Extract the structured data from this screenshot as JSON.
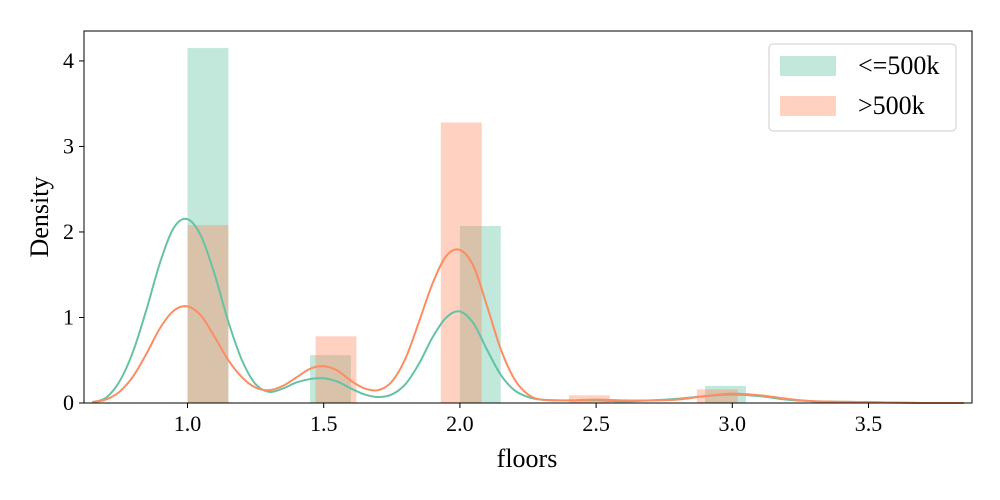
{
  "chart_data": {
    "type": "bar",
    "xlabel": "floors",
    "ylabel": "Density",
    "xlim": [
      0.62,
      3.88
    ],
    "ylim": [
      0,
      4.35
    ],
    "x_ticks": [
      1.0,
      1.5,
      2.0,
      2.5,
      3.0,
      3.5
    ],
    "x_tick_labels": [
      "1.0",
      "1.5",
      "2.0",
      "2.5",
      "3.0",
      "3.5"
    ],
    "y_ticks": [
      0,
      1,
      2,
      3,
      4
    ],
    "y_tick_labels": [
      "0",
      "1",
      "2",
      "3",
      "4"
    ],
    "grid": false,
    "legend_position": "top-right",
    "series": [
      {
        "name": "<=500k",
        "color": "#66c2a5",
        "bar_opacity": 0.4,
        "bins": [
          {
            "x0": 1.0,
            "x1": 1.15,
            "density": 4.15
          },
          {
            "x0": 1.45,
            "x1": 1.6,
            "density": 0.56
          },
          {
            "x0": 2.0,
            "x1": 2.15,
            "density": 2.07
          },
          {
            "x0": 2.9,
            "x1": 3.05,
            "density": 0.2
          }
        ],
        "kde": {
          "x": [
            0.65,
            0.7,
            0.75,
            0.8,
            0.85,
            0.9,
            0.95,
            1.0,
            1.05,
            1.1,
            1.15,
            1.2,
            1.25,
            1.3,
            1.35,
            1.4,
            1.45,
            1.5,
            1.55,
            1.6,
            1.65,
            1.7,
            1.75,
            1.8,
            1.85,
            1.9,
            1.95,
            2.0,
            2.05,
            2.1,
            2.15,
            2.2,
            2.25,
            2.3,
            2.4,
            2.5,
            2.6,
            2.7,
            2.8,
            2.9,
            3.0,
            3.1,
            3.2,
            3.3,
            3.5,
            3.7,
            3.85
          ],
          "y": [
            0.01,
            0.06,
            0.25,
            0.6,
            1.1,
            1.65,
            2.05,
            2.15,
            1.95,
            1.5,
            0.95,
            0.5,
            0.22,
            0.13,
            0.17,
            0.24,
            0.28,
            0.29,
            0.25,
            0.17,
            0.1,
            0.07,
            0.1,
            0.22,
            0.46,
            0.77,
            1.0,
            1.07,
            0.93,
            0.62,
            0.33,
            0.15,
            0.07,
            0.04,
            0.03,
            0.03,
            0.02,
            0.03,
            0.05,
            0.08,
            0.1,
            0.08,
            0.04,
            0.02,
            0.01,
            0.0,
            0.0
          ]
        }
      },
      {
        "name": ">500k",
        "color": "#fc8d62",
        "bar_opacity": 0.4,
        "bins": [
          {
            "x0": 1.0,
            "x1": 1.15,
            "density": 2.08
          },
          {
            "x0": 1.47,
            "x1": 1.62,
            "density": 0.78
          },
          {
            "x0": 1.93,
            "x1": 2.08,
            "density": 3.28
          },
          {
            "x0": 2.4,
            "x1": 2.55,
            "density": 0.09
          },
          {
            "x0": 2.87,
            "x1": 3.02,
            "density": 0.16
          }
        ],
        "kde": {
          "x": [
            0.65,
            0.7,
            0.75,
            0.8,
            0.85,
            0.9,
            0.95,
            1.0,
            1.05,
            1.1,
            1.15,
            1.2,
            1.25,
            1.3,
            1.35,
            1.4,
            1.45,
            1.5,
            1.55,
            1.6,
            1.65,
            1.7,
            1.75,
            1.8,
            1.85,
            1.9,
            1.95,
            2.0,
            2.05,
            2.1,
            2.15,
            2.2,
            2.25,
            2.3,
            2.4,
            2.5,
            2.6,
            2.7,
            2.8,
            2.9,
            3.0,
            3.1,
            3.2,
            3.3,
            3.5,
            3.7,
            3.85
          ],
          "y": [
            0.01,
            0.04,
            0.13,
            0.31,
            0.58,
            0.88,
            1.08,
            1.13,
            1.02,
            0.77,
            0.5,
            0.3,
            0.18,
            0.15,
            0.2,
            0.3,
            0.4,
            0.43,
            0.38,
            0.26,
            0.17,
            0.15,
            0.25,
            0.52,
            0.95,
            1.4,
            1.72,
            1.79,
            1.6,
            1.13,
            0.63,
            0.28,
            0.1,
            0.04,
            0.03,
            0.04,
            0.03,
            0.03,
            0.04,
            0.08,
            0.11,
            0.09,
            0.05,
            0.02,
            0.01,
            0.0,
            0.0
          ]
        }
      }
    ]
  }
}
